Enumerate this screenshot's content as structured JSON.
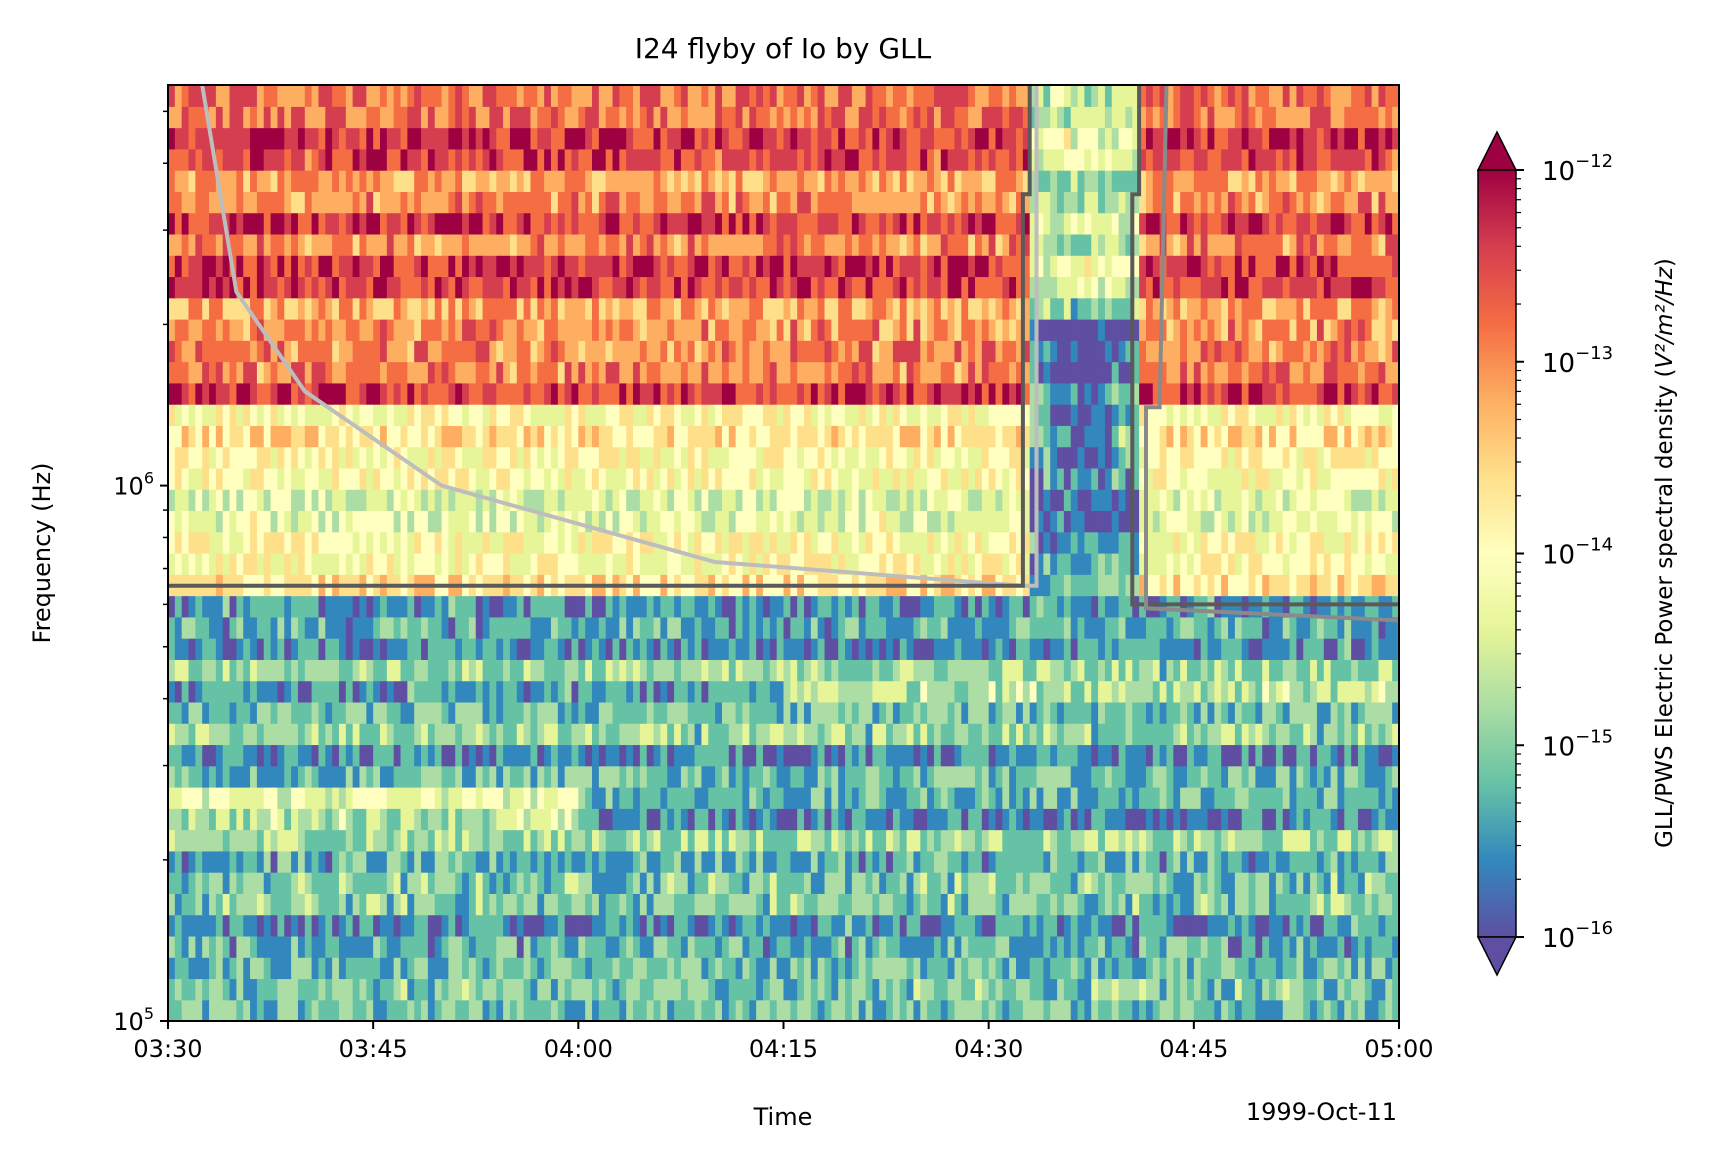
{
  "chart_data": {
    "type": "heatmap",
    "title": "I24 flyby of Io by GLL",
    "xlabel": "Time",
    "ylabel": "Frequency (Hz)",
    "x_ticks": [
      "03:30",
      "03:45",
      "04:00",
      "04:15",
      "04:30",
      "04:45",
      "05:00"
    ],
    "x_range_minutes_after_0330": [
      0,
      90
    ],
    "date_label": "1999-Oct-11",
    "y_scale": "log",
    "y_range_hz": [
      100000,
      5600000
    ],
    "y_ticks": [
      {
        "value": 100000,
        "base": "10",
        "exp": "5"
      },
      {
        "value": 1000000,
        "base": "10",
        "exp": "6"
      }
    ],
    "colorbar": {
      "label_main": "GLL/PWS Electric Power spectral density (",
      "label_unit": "V²/m²/Hz",
      "label_close": ")",
      "scale": "log",
      "range": [
        1e-16,
        1e-12
      ],
      "extend": "both",
      "colormap": "Spectral_r",
      "ticks": [
        {
          "value": 1e-12,
          "base": "10",
          "exp": "−12"
        },
        {
          "value": 1e-13,
          "base": "10",
          "exp": "−13"
        },
        {
          "value": 1e-14,
          "base": "10",
          "exp": "−14"
        },
        {
          "value": 1e-15,
          "base": "10",
          "exp": "−15"
        },
        {
          "value": 1e-16,
          "base": "10",
          "exp": "−16"
        }
      ]
    },
    "overlay_lines": [
      {
        "color": "#bdbdbd",
        "description": "curved cutoff line",
        "points": [
          [
            2.5,
            5600000
          ],
          [
            5,
            2300000
          ],
          [
            10,
            1500000
          ],
          [
            20,
            1000000
          ],
          [
            40,
            720000
          ],
          [
            62.5,
            650000
          ],
          [
            63.5,
            650000
          ],
          [
            63.5,
            5600000
          ]
        ]
      },
      {
        "color": "#5a5a5a",
        "description": "dark horizontal boundary left",
        "points": [
          [
            0,
            650000
          ],
          [
            62.5,
            650000
          ],
          [
            62.5,
            3500000
          ],
          [
            63,
            3500000
          ],
          [
            63,
            5600000
          ]
        ]
      },
      {
        "color": "#5a5a5a",
        "description": "dark horizontal boundary right",
        "points": [
          [
            71,
            5600000
          ],
          [
            71,
            3500000
          ],
          [
            70.5,
            3500000
          ],
          [
            70.5,
            600000
          ],
          [
            90,
            600000
          ]
        ]
      },
      {
        "color": "#8a8a8a",
        "description": "mid grey right",
        "points": [
          [
            73,
            5600000
          ],
          [
            72.5,
            1400000
          ],
          [
            71.5,
            1400000
          ],
          [
            71.5,
            590000
          ],
          [
            90,
            560000
          ]
        ]
      }
    ],
    "colors": {
      "deep_red": "#9e0142",
      "red": "#d53e4f",
      "orange": "#f46d43",
      "light_orange": "#fdae61",
      "pale_yellow": "#fee08b",
      "cream": "#ffffbf",
      "light_green": "#e6f598",
      "green": "#abdda4",
      "teal": "#66c2a5",
      "blue": "#3288bd",
      "purple": "#5e4fa2"
    }
  }
}
